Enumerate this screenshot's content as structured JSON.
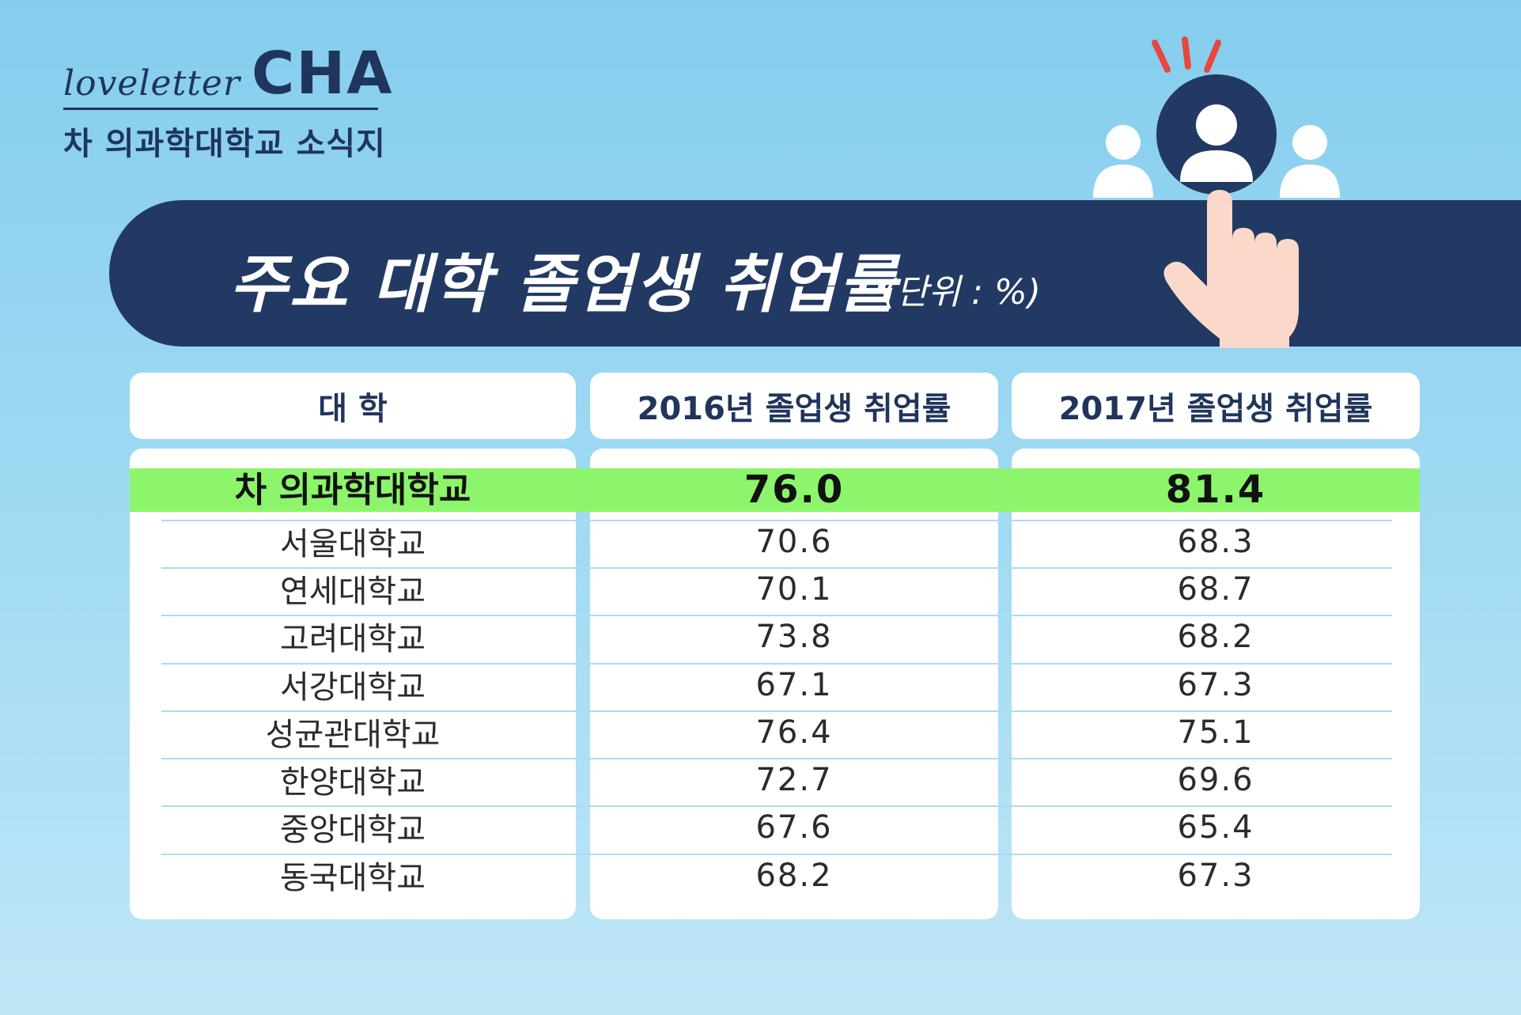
{
  "logo": {
    "script": "loveletter",
    "brand": "CHA",
    "subtitle": "차 의과학대학교 소식지"
  },
  "banner": {
    "title": "주요 대학 졸업생 취업률",
    "unit": "(단위 : %)"
  },
  "colors": {
    "banner": "#223a63",
    "highlight": "#8cf56b",
    "background": "#85cdee"
  },
  "icons": [
    "people-icon",
    "pointing-hand-icon",
    "alert-rays-icon"
  ],
  "chart_data": {
    "type": "table",
    "columns": [
      "대 학",
      "2016년 졸업생 취업률",
      "2017년 졸업생 취업률"
    ],
    "highlight_row": 0,
    "rows": [
      [
        "차 의과학대학교",
        "76.0",
        "81.4"
      ],
      [
        "서울대학교",
        "70.6",
        "68.3"
      ],
      [
        "연세대학교",
        "70.1",
        "68.7"
      ],
      [
        "고려대학교",
        "73.8",
        "68.2"
      ],
      [
        "서강대학교",
        "67.1",
        "67.3"
      ],
      [
        "성균관대학교",
        "76.4",
        "75.1"
      ],
      [
        "한양대학교",
        "72.7",
        "69.6"
      ],
      [
        "중앙대학교",
        "67.6",
        "65.4"
      ],
      [
        "동국대학교",
        "68.2",
        "67.3"
      ]
    ]
  }
}
